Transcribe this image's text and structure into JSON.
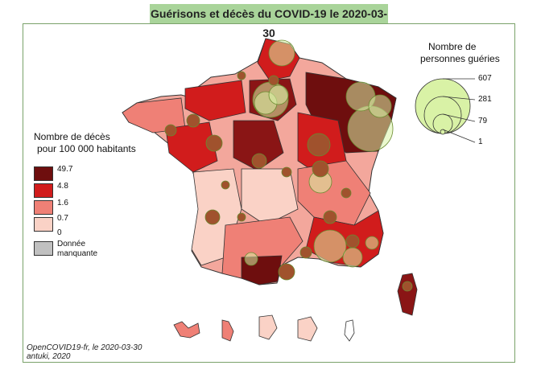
{
  "title": "Guérisons et décès du COVID-19 le 2020-03-30",
  "deaths_legend": {
    "title_line1": "Nombre de décès",
    "title_line2": "pour 100 000 habitants",
    "classes": [
      {
        "label": "49.7",
        "color": "#6e0e0e"
      },
      {
        "label": "4.8",
        "color": "#d11c1c"
      },
      {
        "label": "1.6",
        "color": "#ef8076"
      },
      {
        "label": "0.7",
        "color": "#fad2c6"
      },
      {
        "label": "0",
        "color": null
      }
    ],
    "missing_label_line1": "Donnée",
    "missing_label_line2": "manquante",
    "missing_color": "#c0c0c0"
  },
  "recovered_legend": {
    "title_line1": "Nombre de",
    "title_line2": "personnes guéries",
    "values": [
      607,
      281,
      79,
      1
    ],
    "bubble_color": "#d9f2a6"
  },
  "credit_line1": "OpenCOVID19-fr, le 2020-03-30",
  "credit_line2": "antuki, 2020"
}
